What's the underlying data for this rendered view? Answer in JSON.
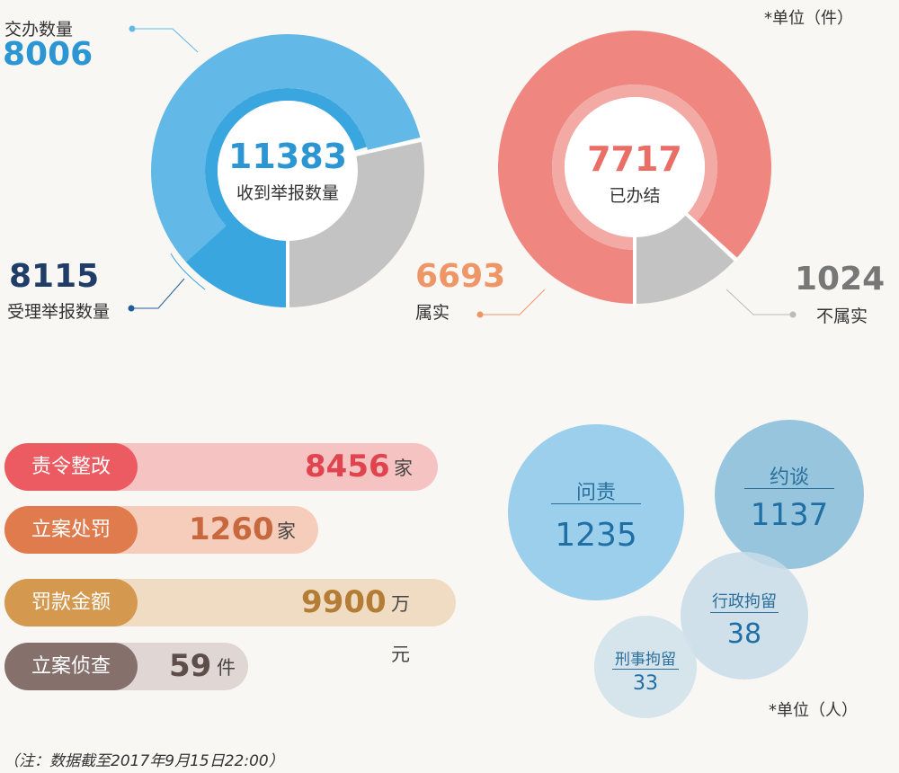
{
  "unit_note_top": "*单位（件）",
  "unit_note_bottom": "*单位（人）",
  "footnote": "（注：数据截至2017年9月15日22:00）",
  "colors": {
    "blue": "#62b8e6",
    "blue_dark": "#3aa6df",
    "blue_text": "#2b96d3",
    "gray": "#c3c3c3",
    "red": "#ef8680",
    "red_text": "#e86e66",
    "orange_text": "#ef9667",
    "gray_text": "#777777"
  },
  "chart_data": [
    {
      "type": "pie",
      "title": "收到举报数量",
      "total": 11383,
      "slices": [
        {
          "label": "受理举报数量",
          "value": 8115
        },
        {
          "label": "",
          "value": 3268
        }
      ],
      "sub": {
        "label": "交办数量",
        "value": 8006
      }
    },
    {
      "type": "pie",
      "title": "已办结",
      "total": 7717,
      "slices": [
        {
          "label": "属实",
          "value": 6693
        },
        {
          "label": "不属实",
          "value": 1024
        }
      ]
    },
    {
      "type": "bar",
      "categories": [
        "责令整改",
        "立案处罚",
        "罚款金额",
        "立案侦查"
      ],
      "values": [
        8456,
        1260,
        9900,
        59
      ],
      "units": [
        "家",
        "家",
        "万元",
        "件"
      ]
    },
    {
      "type": "scatter",
      "categories": [
        "问责",
        "约谈",
        "行政拘留",
        "刑事拘留"
      ],
      "values": [
        1235,
        1137,
        38,
        33
      ]
    }
  ]
}
